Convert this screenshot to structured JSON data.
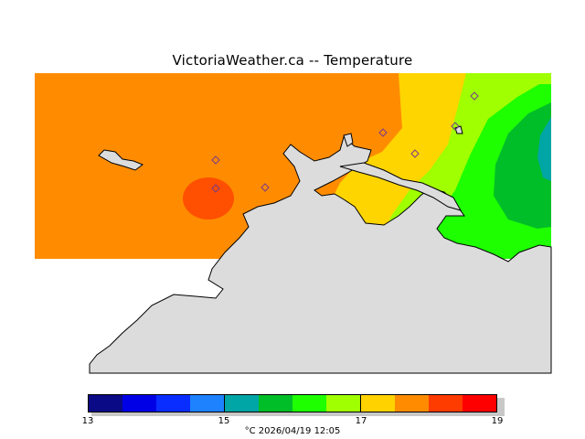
{
  "title": "VictoriaWeather.ca  --  Temperature",
  "legend": {
    "colors": [
      "#0a0a87",
      "#0000e6",
      "#0a2dff",
      "#1e82ff",
      "#00a5a5",
      "#00be28",
      "#1eff00",
      "#a0ff00",
      "#ffd200",
      "#ff8c00",
      "#ff3c00",
      "#ff0000"
    ],
    "ticks": [
      "13",
      "15",
      "17",
      "19"
    ]
  },
  "footer": "°C  2026/04/19 12:05",
  "map": {
    "colors": {
      "orange": "#ff8c00",
      "orange_red": "#ff4f00",
      "yellow": "#ffd500",
      "yellow_green": "#a0ff00",
      "green": "#1eff00",
      "dark_green": "#00be28",
      "teal": "#00a5a5",
      "land": "#dcdcdc"
    }
  }
}
